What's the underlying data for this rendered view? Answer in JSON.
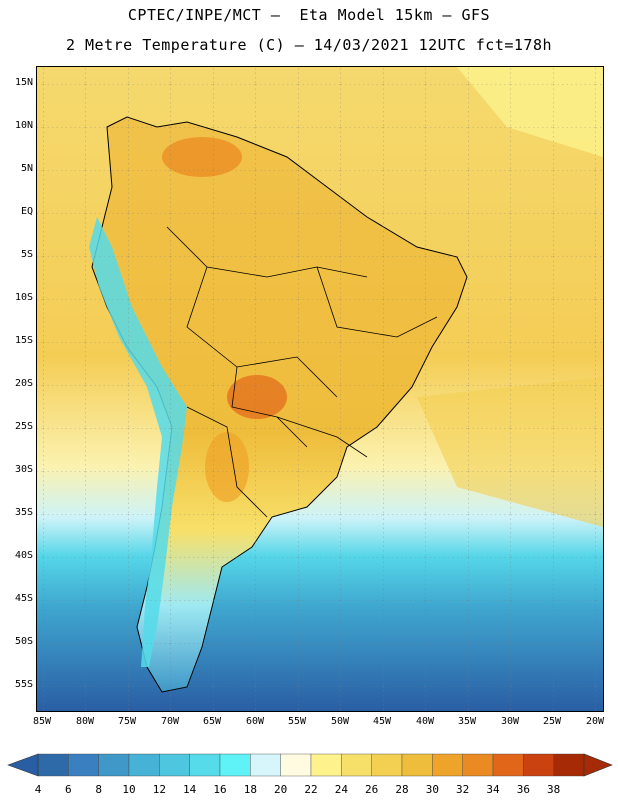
{
  "title": {
    "line1": "CPTEC/INPE/MCT –  Eta Model 15km – GFS",
    "line2": "2 Metre Temperature (C) – 14/03/2021 12UTC fct=178h"
  },
  "axes": {
    "lat_labels": [
      "15N",
      "10N",
      "5N",
      "EQ",
      "5S",
      "10S",
      "15S",
      "20S",
      "25S",
      "30S",
      "35S",
      "40S",
      "45S",
      "50S",
      "55S"
    ],
    "lon_labels": [
      "85W",
      "80W",
      "75W",
      "70W",
      "65W",
      "60W",
      "55W",
      "50W",
      "45W",
      "40W",
      "35W",
      "30W",
      "25W",
      "20W"
    ]
  },
  "colorbar": {
    "labels": [
      "4",
      "6",
      "8",
      "10",
      "12",
      "14",
      "16",
      "18",
      "20",
      "22",
      "24",
      "26",
      "28",
      "30",
      "32",
      "34",
      "36",
      "38"
    ],
    "colors": [
      "#2f6aa8",
      "#3a7fbf",
      "#3f98c8",
      "#45b2d6",
      "#4fc6df",
      "#55dbea",
      "#5ff2f7",
      "#d6f6fb",
      "#fffbe0",
      "#fdf28c",
      "#f7e06a",
      "#f3cf52",
      "#efbd3c",
      "#eea42a",
      "#e98a22",
      "#e2661a",
      "#c9420f",
      "#a52a05"
    ]
  }
}
